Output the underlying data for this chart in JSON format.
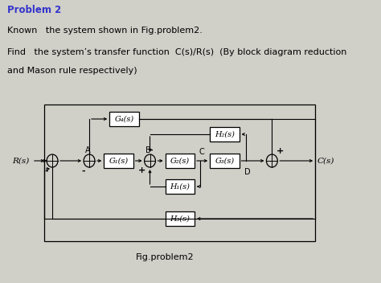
{
  "title_text": "Problem 2",
  "line1": "Known   the system shown in Fig.problem2.",
  "line2": "Find   the system’s transfer function  C(s)/R(s)  (By block diagram reduction",
  "line3": "and Mason rule respectively)",
  "fig_label": "Fig.problem2",
  "bg_color": "#d0cfc8",
  "box_color": "#ffffff",
  "box_edge": "#000000",
  "G4": "G₄(s)",
  "G1": "G₁(s)",
  "G2": "G₂(s)",
  "G3": "G₃(s)",
  "H1": "H₁(s)",
  "H2": "H₂(s)",
  "H3": "H₃(s)",
  "Rs": "R(s)",
  "Cs": "C(s)",
  "lA": "A",
  "lB": "B",
  "lC": "C",
  "lD": "D",
  "title_color": "#3333cc",
  "text_color": "#111111"
}
